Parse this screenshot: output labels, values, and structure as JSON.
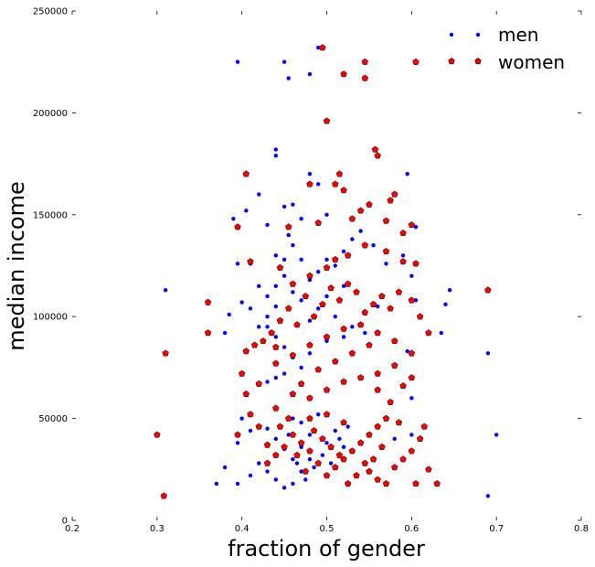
{
  "chart_data": {
    "type": "scatter",
    "xlabel": "fraction of gender",
    "ylabel": "median income",
    "xlim": [
      0.2,
      0.8
    ],
    "ylim": [
      0,
      250000
    ],
    "x_ticks": [
      0.2,
      0.3,
      0.4,
      0.5,
      0.6,
      0.7,
      0.8
    ],
    "x_tick_labels": [
      "0.2",
      "0.3",
      "0.4",
      "0.5",
      "0.6",
      "0.7",
      "0.8"
    ],
    "y_ticks": [
      0,
      50000,
      100000,
      150000,
      200000,
      250000
    ],
    "y_tick_labels": [
      "0",
      "50000",
      "100000",
      "150000",
      "200000",
      "250000"
    ],
    "grid": false,
    "legend_position": "top-right",
    "series": [
      {
        "name": "men",
        "color": "#0000ff",
        "marker": "dot",
        "points": [
          [
            0.395,
            225000
          ],
          [
            0.45,
            225000
          ],
          [
            0.49,
            232000
          ],
          [
            0.455,
            217000
          ],
          [
            0.48,
            219000
          ],
          [
            0.44,
            182000
          ],
          [
            0.44,
            179000
          ],
          [
            0.49,
            165000
          ],
          [
            0.595,
            170000
          ],
          [
            0.42,
            160000
          ],
          [
            0.45,
            154000
          ],
          [
            0.47,
            148000
          ],
          [
            0.5,
            150000
          ],
          [
            0.405,
            152000
          ],
          [
            0.39,
            148000
          ],
          [
            0.48,
            170000
          ],
          [
            0.46,
            155000
          ],
          [
            0.43,
            145000
          ],
          [
            0.44,
            130000
          ],
          [
            0.455,
            140000
          ],
          [
            0.395,
            126000
          ],
          [
            0.41,
            126000
          ],
          [
            0.605,
            144000
          ],
          [
            0.31,
            113000
          ],
          [
            0.4,
            107000
          ],
          [
            0.385,
            101000
          ],
          [
            0.38,
            92000
          ],
          [
            0.43,
            110000
          ],
          [
            0.43,
            100000
          ],
          [
            0.44,
            115000
          ],
          [
            0.45,
            120000
          ],
          [
            0.46,
            112000
          ],
          [
            0.47,
            108000
          ],
          [
            0.48,
            98000
          ],
          [
            0.49,
            104000
          ],
          [
            0.5,
            110000
          ],
          [
            0.51,
            100000
          ],
          [
            0.52,
            115000
          ],
          [
            0.42,
            95000
          ],
          [
            0.44,
            90000
          ],
          [
            0.45,
            85000
          ],
          [
            0.46,
            80000
          ],
          [
            0.47,
            75000
          ],
          [
            0.44,
            70000
          ],
          [
            0.43,
            68000
          ],
          [
            0.45,
            72000
          ],
          [
            0.48,
            82000
          ],
          [
            0.5,
            88000
          ],
          [
            0.52,
            90000
          ],
          [
            0.53,
            95000
          ],
          [
            0.545,
            92000
          ],
          [
            0.56,
            105000
          ],
          [
            0.64,
            106000
          ],
          [
            0.635,
            92000
          ],
          [
            0.645,
            113000
          ],
          [
            0.595,
            83000
          ],
          [
            0.69,
            82000
          ],
          [
            0.7,
            42000
          ],
          [
            0.69,
            12000
          ],
          [
            0.37,
            18000
          ],
          [
            0.38,
            26000
          ],
          [
            0.395,
            18000
          ],
          [
            0.41,
            22000
          ],
          [
            0.42,
            28000
          ],
          [
            0.43,
            24000
          ],
          [
            0.44,
            20000
          ],
          [
            0.45,
            16000
          ],
          [
            0.46,
            18000
          ],
          [
            0.47,
            24000
          ],
          [
            0.48,
            30000
          ],
          [
            0.45,
            35000
          ],
          [
            0.44,
            40000
          ],
          [
            0.43,
            45000
          ],
          [
            0.46,
            50000
          ],
          [
            0.47,
            48000
          ],
          [
            0.48,
            42000
          ],
          [
            0.5,
            38000
          ],
          [
            0.51,
            44000
          ],
          [
            0.49,
            52000
          ],
          [
            0.52,
            36000
          ],
          [
            0.46,
            30000
          ],
          [
            0.47,
            36000
          ],
          [
            0.455,
            42000
          ],
          [
            0.465,
            28000
          ],
          [
            0.475,
            20000
          ],
          [
            0.485,
            26000
          ],
          [
            0.495,
            32000
          ],
          [
            0.505,
            28000
          ],
          [
            0.515,
            40000
          ],
          [
            0.525,
            46000
          ],
          [
            0.6,
            120000
          ],
          [
            0.605,
            108000
          ],
          [
            0.59,
            130000
          ],
          [
            0.57,
            126000
          ],
          [
            0.555,
            135000
          ],
          [
            0.54,
            142000
          ],
          [
            0.53,
            138000
          ],
          [
            0.52,
            132000
          ],
          [
            0.51,
            125000
          ],
          [
            0.5,
            128000
          ],
          [
            0.49,
            122000
          ],
          [
            0.48,
            118000
          ],
          [
            0.47,
            128000
          ],
          [
            0.46,
            135000
          ],
          [
            0.45,
            128000
          ],
          [
            0.44,
            105000
          ],
          [
            0.43,
            95000
          ],
          [
            0.42,
            115000
          ],
          [
            0.41,
            104000
          ],
          [
            0.395,
            38000
          ],
          [
            0.4,
            50000
          ],
          [
            0.41,
            44000
          ],
          [
            0.6,
            60000
          ],
          [
            0.58,
            40000
          ],
          [
            0.6,
            42000
          ]
        ]
      },
      {
        "name": "women",
        "color": "#ff0000",
        "marker": "pentagon",
        "points": [
          [
            0.495,
            232000
          ],
          [
            0.545,
            225000
          ],
          [
            0.605,
            225000
          ],
          [
            0.52,
            219000
          ],
          [
            0.545,
            217000
          ],
          [
            0.5,
            196000
          ],
          [
            0.557,
            182000
          ],
          [
            0.56,
            179000
          ],
          [
            0.405,
            170000
          ],
          [
            0.515,
            170000
          ],
          [
            0.48,
            165000
          ],
          [
            0.51,
            165000
          ],
          [
            0.58,
            160000
          ],
          [
            0.52,
            162000
          ],
          [
            0.575,
            157000
          ],
          [
            0.55,
            155000
          ],
          [
            0.395,
            144000
          ],
          [
            0.455,
            144000
          ],
          [
            0.49,
            146000
          ],
          [
            0.53,
            148000
          ],
          [
            0.54,
            152000
          ],
          [
            0.57,
            147000
          ],
          [
            0.59,
            141000
          ],
          [
            0.6,
            145000
          ],
          [
            0.545,
            135000
          ],
          [
            0.57,
            132000
          ],
          [
            0.59,
            127000
          ],
          [
            0.605,
            126000
          ],
          [
            0.525,
            130000
          ],
          [
            0.51,
            128000
          ],
          [
            0.5,
            124000
          ],
          [
            0.48,
            120000
          ],
          [
            0.46,
            116000
          ],
          [
            0.445,
            124000
          ],
          [
            0.41,
            127000
          ],
          [
            0.36,
            107000
          ],
          [
            0.36,
            92000
          ],
          [
            0.3,
            42000
          ],
          [
            0.31,
            82000
          ],
          [
            0.308,
            12000
          ],
          [
            0.69,
            113000
          ],
          [
            0.61,
            100000
          ],
          [
            0.62,
            92000
          ],
          [
            0.6,
            108000
          ],
          [
            0.585,
            112000
          ],
          [
            0.575,
            104000
          ],
          [
            0.565,
            110000
          ],
          [
            0.555,
            106000
          ],
          [
            0.545,
            102000
          ],
          [
            0.535,
            112000
          ],
          [
            0.525,
            116000
          ],
          [
            0.515,
            108000
          ],
          [
            0.505,
            114000
          ],
          [
            0.495,
            106000
          ],
          [
            0.485,
            100000
          ],
          [
            0.475,
            110000
          ],
          [
            0.465,
            96000
          ],
          [
            0.455,
            104000
          ],
          [
            0.445,
            98000
          ],
          [
            0.435,
            92000
          ],
          [
            0.425,
            88000
          ],
          [
            0.415,
            86000
          ],
          [
            0.405,
            83000
          ],
          [
            0.4,
            72000
          ],
          [
            0.405,
            62000
          ],
          [
            0.42,
            67000
          ],
          [
            0.44,
            77000
          ],
          [
            0.46,
            81000
          ],
          [
            0.48,
            86000
          ],
          [
            0.5,
            90000
          ],
          [
            0.52,
            94000
          ],
          [
            0.54,
            96000
          ],
          [
            0.56,
            92000
          ],
          [
            0.58,
            88000
          ],
          [
            0.6,
            82000
          ],
          [
            0.58,
            76000
          ],
          [
            0.56,
            72000
          ],
          [
            0.54,
            70000
          ],
          [
            0.52,
            68000
          ],
          [
            0.5,
            64000
          ],
          [
            0.48,
            60000
          ],
          [
            0.46,
            62000
          ],
          [
            0.44,
            55000
          ],
          [
            0.56,
            64000
          ],
          [
            0.575,
            58000
          ],
          [
            0.59,
            66000
          ],
          [
            0.6,
            70000
          ],
          [
            0.57,
            50000
          ],
          [
            0.56,
            46000
          ],
          [
            0.55,
            42000
          ],
          [
            0.54,
            38000
          ],
          [
            0.53,
            34000
          ],
          [
            0.52,
            30000
          ],
          [
            0.51,
            26000
          ],
          [
            0.5,
            22000
          ],
          [
            0.49,
            28000
          ],
          [
            0.48,
            34000
          ],
          [
            0.47,
            38000
          ],
          [
            0.46,
            42000
          ],
          [
            0.45,
            36000
          ],
          [
            0.44,
            32000
          ],
          [
            0.43,
            28000
          ],
          [
            0.42,
            46000
          ],
          [
            0.395,
            42000
          ],
          [
            0.41,
            52000
          ],
          [
            0.48,
            50000
          ],
          [
            0.5,
            52000
          ],
          [
            0.52,
            48000
          ],
          [
            0.55,
            24000
          ],
          [
            0.56,
            20000
          ],
          [
            0.57,
            18000
          ],
          [
            0.58,
            26000
          ],
          [
            0.59,
            30000
          ],
          [
            0.6,
            34000
          ],
          [
            0.61,
            40000
          ],
          [
            0.615,
            46000
          ],
          [
            0.62,
            25000
          ],
          [
            0.63,
            18000
          ],
          [
            0.605,
            18000
          ],
          [
            0.585,
            48000
          ],
          [
            0.565,
            36000
          ],
          [
            0.555,
            30000
          ],
          [
            0.545,
            28000
          ],
          [
            0.535,
            22000
          ],
          [
            0.525,
            18000
          ],
          [
            0.515,
            32000
          ],
          [
            0.505,
            36000
          ],
          [
            0.495,
            40000
          ],
          [
            0.485,
            44000
          ],
          [
            0.475,
            24000
          ],
          [
            0.465,
            32000
          ],
          [
            0.455,
            50000
          ],
          [
            0.445,
            46000
          ],
          [
            0.43,
            37000
          ],
          [
            0.44,
            85000
          ],
          [
            0.47,
            67000
          ],
          [
            0.49,
            74000
          ],
          [
            0.51,
            78000
          ],
          [
            0.53,
            82000
          ],
          [
            0.55,
            86000
          ]
        ]
      }
    ]
  }
}
